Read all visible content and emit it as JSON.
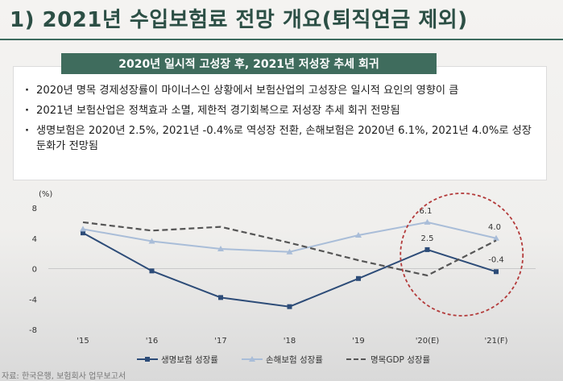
{
  "slide_title": "1) 2021년 수입보험료 전망 개요(퇴직연금 제외)",
  "summary_box": "2020년 일시적 고성장 후, 2021년 저성장 추세 회귀",
  "bullets": [
    "2020년 명목 경제성장률이 마이너스인 상황에서 보험산업의 고성장은 일시적 요인의 영향이 큼",
    "2021년 보험산업은 정책효과 소멸, 제한적 경기회복으로 저성장 추세 회귀 전망됨",
    "생명보험은 2020년 2.5%, 2021년 -0.4%로 역성장 전환, 손해보험은 2020년 6.1%, 2021년 4.0%로 성장둔화가 전망됨"
  ],
  "source_note": "자료: 한국은행, 보험회사 업무보고서",
  "chart_data": {
    "type": "line",
    "y_unit_label": "(%)",
    "categories": [
      "'15",
      "'16",
      "'17",
      "'18",
      "'19",
      "'20(E)",
      "'21(F)"
    ],
    "ylim": [
      -8,
      8
    ],
    "yticks": [
      8,
      4,
      0,
      -4,
      -8
    ],
    "grid": false,
    "legend_position": "bottom",
    "series": [
      {
        "name": "생명보험 성장률",
        "color": "#2d4c78",
        "style": "solid-square",
        "values": [
          4.7,
          -0.3,
          -3.8,
          -5.0,
          -1.3,
          2.5,
          -0.4
        ]
      },
      {
        "name": "손해보험 성장률",
        "color": "#a9bdd8",
        "style": "solid-triangle",
        "values": [
          5.2,
          3.6,
          2.6,
          2.2,
          4.4,
          6.1,
          4.0
        ]
      },
      {
        "name": "명목GDP 성장률",
        "color": "#555555",
        "style": "dashed",
        "values": [
          6.1,
          5.0,
          5.5,
          3.4,
          1.1,
          -0.9,
          3.7
        ]
      }
    ],
    "data_labels": [
      {
        "series": 0,
        "index": 5,
        "text": "2.5"
      },
      {
        "series": 0,
        "index": 6,
        "text": "-0.4"
      },
      {
        "series": 1,
        "index": 5,
        "text": "6.1"
      },
      {
        "series": 1,
        "index": 6,
        "text": "4.0"
      }
    ],
    "highlight": {
      "shape": "dashed-circle",
      "color": "#b33a3a",
      "categories": [
        "'20(E)",
        "'21(F)"
      ]
    }
  }
}
